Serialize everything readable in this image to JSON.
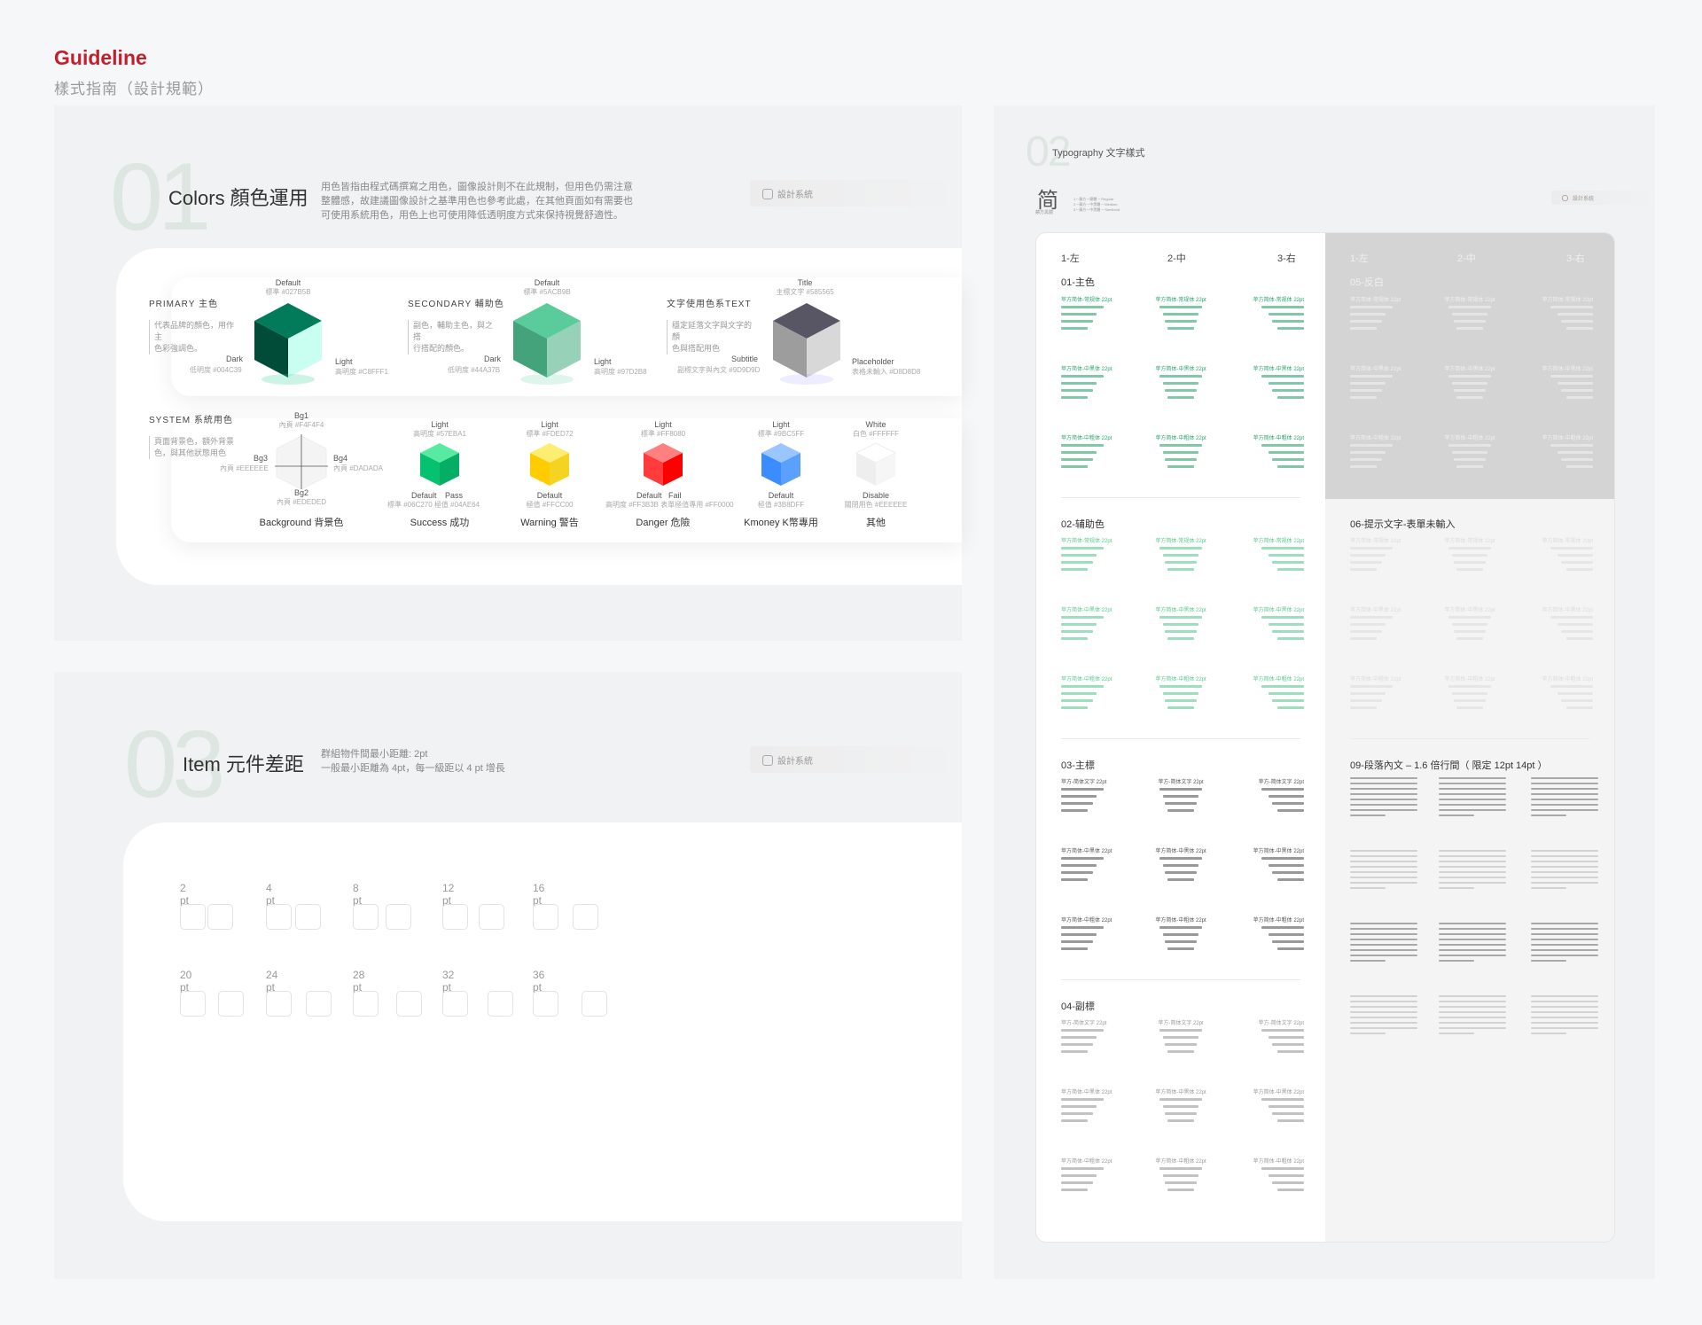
{
  "header": {
    "title": "Guideline",
    "subtitle": "樣式指南（設計規範）"
  },
  "colors_section": {
    "num": "01",
    "title": "Colors 顏色運用",
    "desc": [
      "用色皆指由程式碼撰寫之用色，圖像設計則不在此規制，但用色仍需注意",
      "整體感，故建議圖像設計之基準用色也參考此處，在其他頁面如有需要也",
      "可使用系統用色，用色上也可使用降低透明度方式來保持視覺舒適性。"
    ],
    "tag": "設計系統",
    "primary": {
      "label": "PRIMARY 主色",
      "desc": [
        "代表品牌的顏色，用作主",
        "色彩強調色。"
      ],
      "default": "Default",
      "default_code": "標準 #027B5B",
      "dark": "Dark",
      "dark_code": "低明度 #004C39",
      "light": "Light",
      "light_code": "高明度 #C8FFF1"
    },
    "secondary": {
      "label": "SECONDARY 輔助色",
      "desc": [
        "副色，輔助主色，與之搭",
        "行搭配的顏色。"
      ],
      "default": "Default",
      "default_code": "標準 #5ACB9B",
      "dark": "Dark",
      "dark_code": "低明度 #44A37B",
      "light": "Light",
      "light_code": "高明度 #97D2B8"
    },
    "text": {
      "label": "文字使用色系TEXT",
      "desc": [
        "穩定延落文字與文字的顏",
        "色與搭配用色"
      ],
      "title": "Title",
      "title_code": "主標文字 #585565",
      "subtitle": "Subtitle",
      "subtitle_code": "副標文字與內文 #9D9D9D",
      "placeholder": "Placeholder",
      "placeholder_code": "表格未輸入 #D8D8D8"
    },
    "system": {
      "label": "SYSTEM 系統用色",
      "desc": [
        "頁面背景色，額外背景",
        "色，與其他狀態用色"
      ],
      "bg1": "Bg1",
      "bg1_code": "內頁 #F4F4F4",
      "bg2": "Bg2",
      "bg2_code": "內頁 #EDEDED",
      "bg3": "Bg3",
      "bg3_code": "內頁 #EEEEEE",
      "bg4": "Bg4",
      "bg4_code": "內頁 #DADADA",
      "bg_title": "Background 背景色",
      "success": {
        "light": "Light",
        "light_code": "高明度 #57EBA1",
        "default": "Default",
        "pass": "Pass",
        "default_code": "標準 #06C270",
        "pass_code": "極值 #04AE64",
        "title": "Success 成功"
      },
      "warning": {
        "light": "Light",
        "light_code": "標準 #FDED72",
        "default": "Default",
        "default_code": "極值 #FFCC00",
        "title": "Warning 警告"
      },
      "danger": {
        "light": "Light",
        "light_code": "標準 #FF8080",
        "default": "Default",
        "fail": "Fail",
        "default_code": "高明度 #FF3B3B",
        "fail_code": "表單極值專用 #FF0000",
        "title": "Danger 危險"
      },
      "kmoney": {
        "light": "Light",
        "light_code": "標準 #9BC5FF",
        "default": "Default",
        "default_code": "極值 #3B8DFF",
        "title": "Kmoney K幣專用"
      },
      "other": {
        "white": "White",
        "white_code": "白色 #FFFFFF",
        "disable": "Disable",
        "disable_code": "關閉用色 #EEEEEE",
        "title": "其他"
      }
    }
  },
  "item_section": {
    "num": "03",
    "title": "Item 元件差距",
    "desc": [
      "群組物件間最小距離: 2pt",
      "一般最小距離為 4pt，每一級距以 4 pt 增長"
    ],
    "tag": "設計系統",
    "row1": [
      "2 pt",
      "4 pt",
      "8 pt",
      "12 pt",
      "16 pt"
    ],
    "row2": [
      "20 pt",
      "24 pt",
      "28 pt",
      "32 pt",
      "36 pt"
    ]
  },
  "typo_section": {
    "num": "02",
    "title": "Typography 文字樣式",
    "glyph": "简",
    "glyph_caption": "蘋方黑體",
    "glyph_notes": [
      "1－蘋方－簡體 ─ Regular",
      "2－蘋方－中黑體 ─ Medium",
      "3－蘋方－中黑體 ─ Semibold"
    ],
    "tag": "設計系統",
    "cols": [
      "1-左",
      "2-中",
      "3-右"
    ],
    "left_groups": [
      "01-主色",
      "02-辅助色",
      "03-主標",
      "04-副標"
    ],
    "right_groups": [
      "05-反白",
      "06-提示文字-表單未輸入",
      "09-段落內文 – 1.6 倍行間（ 限定 12pt 14pt ）"
    ],
    "sample_1": "苹方简体-常规体 22pt",
    "sample_2": "苹方简体-中黑体 22pt",
    "sample_3": "苹方简体-中粗体 22pt",
    "sample_h1": "苹方-简体文字 22pt",
    "colors": {
      "primary": "#2aa56c",
      "secondary": "#5ac98f",
      "title": "#555555",
      "subtitle": "#9a9a9a",
      "inverse": "#f0f0f0",
      "hint": "#dcdcdc"
    }
  }
}
